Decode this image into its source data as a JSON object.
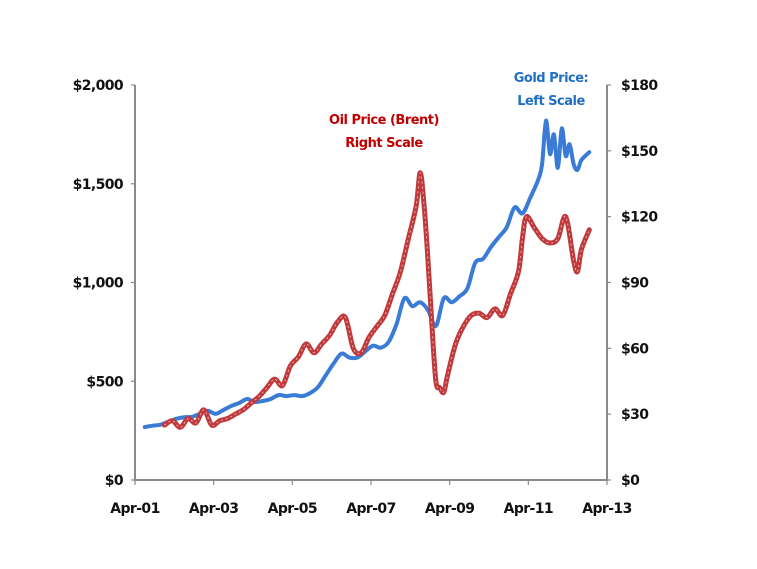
{
  "chart_data": {
    "type": "line",
    "title": "",
    "xlabel": "",
    "ylabel": "",
    "x_ticks": [
      "Apr-01",
      "Apr-03",
      "Apr-05",
      "Apr-07",
      "Apr-09",
      "Apr-11",
      "Apr-13"
    ],
    "x_range": [
      "2001-04",
      "2013-04"
    ],
    "left_axis": {
      "label": "Gold Price",
      "ylim": [
        0,
        2000
      ],
      "ticks": [
        "$0",
        "$500",
        "$1,000",
        "$1,500",
        "$2,000"
      ],
      "tick_values": [
        0,
        500,
        1000,
        1500,
        2000
      ]
    },
    "right_axis": {
      "label": "Oil Price (Brent)",
      "ylim": [
        0,
        180
      ],
      "ticks": [
        "$0",
        "$30",
        "$60",
        "$90",
        "$120",
        "$150",
        "$180"
      ],
      "tick_values": [
        0,
        30,
        60,
        90,
        120,
        150,
        180
      ]
    },
    "grid": false,
    "legend": "none",
    "annotations": [
      {
        "lines": [
          "Oil Price (Brent)",
          "Right Scale"
        ],
        "color": "#c00000",
        "series": "oil",
        "placement": "above oil peak, center"
      },
      {
        "lines": [
          "Gold Price:",
          "Left Scale"
        ],
        "color": "#1f6fc5",
        "series": "gold",
        "placement": "top-right"
      }
    ],
    "series": [
      {
        "name": "Gold Price",
        "axis": "left",
        "color": "#3a7bd5",
        "x": [
          2001.5,
          2001.7,
          2001.9,
          2002.1,
          2002.3,
          2002.5,
          2002.7,
          2002.9,
          2003.1,
          2003.3,
          2003.5,
          2003.7,
          2003.9,
          2004.1,
          2004.3,
          2004.5,
          2004.7,
          2004.9,
          2005.1,
          2005.3,
          2005.5,
          2005.7,
          2005.9,
          2006.1,
          2006.3,
          2006.5,
          2006.7,
          2006.9,
          2007.1,
          2007.3,
          2007.5,
          2007.7,
          2007.9,
          2008.1,
          2008.3,
          2008.5,
          2008.7,
          2008.9,
          2009.1,
          2009.3,
          2009.5,
          2009.7,
          2009.9,
          2010.1,
          2010.3,
          2010.5,
          2010.7,
          2010.9,
          2011.1,
          2011.3,
          2011.5,
          2011.6,
          2011.7,
          2011.8,
          2011.9,
          2012.0,
          2012.1,
          2012.2,
          2012.3,
          2012.4,
          2012.5,
          2012.6,
          2012.8
        ],
        "values": [
          268,
          275,
          280,
          295,
          310,
          318,
          320,
          335,
          350,
          335,
          355,
          375,
          390,
          410,
          395,
          400,
          410,
          430,
          425,
          430,
          425,
          440,
          470,
          530,
          590,
          640,
          620,
          620,
          650,
          680,
          670,
          700,
          790,
          920,
          880,
          900,
          860,
          780,
          920,
          900,
          930,
          970,
          1100,
          1120,
          1180,
          1230,
          1280,
          1380,
          1350,
          1430,
          1520,
          1600,
          1820,
          1650,
          1750,
          1580,
          1780,
          1640,
          1700,
          1600,
          1570,
          1620,
          1660
        ]
      },
      {
        "name": "Oil Price (Brent)",
        "axis": "right",
        "color": "#c0393b",
        "x": [
          2002.0,
          2002.2,
          2002.4,
          2002.6,
          2002.8,
          2003.0,
          2003.2,
          2003.4,
          2003.6,
          2003.8,
          2004.0,
          2004.2,
          2004.4,
          2004.6,
          2004.8,
          2005.0,
          2005.2,
          2005.4,
          2005.6,
          2005.8,
          2006.0,
          2006.2,
          2006.4,
          2006.6,
          2006.8,
          2007.0,
          2007.2,
          2007.4,
          2007.6,
          2007.8,
          2008.0,
          2008.2,
          2008.4,
          2008.5,
          2008.6,
          2008.7,
          2008.8,
          2008.9,
          2009.0,
          2009.1,
          2009.2,
          2009.4,
          2009.6,
          2009.8,
          2010.0,
          2010.2,
          2010.4,
          2010.6,
          2010.8,
          2011.0,
          2011.1,
          2011.2,
          2011.4,
          2011.6,
          2011.8,
          2012.0,
          2012.2,
          2012.4,
          2012.5,
          2012.6,
          2012.8
        ],
        "values": [
          25,
          27,
          24,
          28,
          26,
          32,
          25,
          27,
          28,
          30,
          32,
          35,
          38,
          42,
          46,
          43,
          52,
          56,
          62,
          58,
          62,
          66,
          72,
          74,
          60,
          58,
          65,
          70,
          75,
          85,
          95,
          110,
          125,
          140,
          125,
          100,
          70,
          45,
          42,
          40,
          48,
          62,
          70,
          75,
          76,
          74,
          78,
          75,
          85,
          95,
          110,
          120,
          115,
          110,
          108,
          110,
          120,
          100,
          95,
          105,
          114
        ]
      }
    ]
  }
}
